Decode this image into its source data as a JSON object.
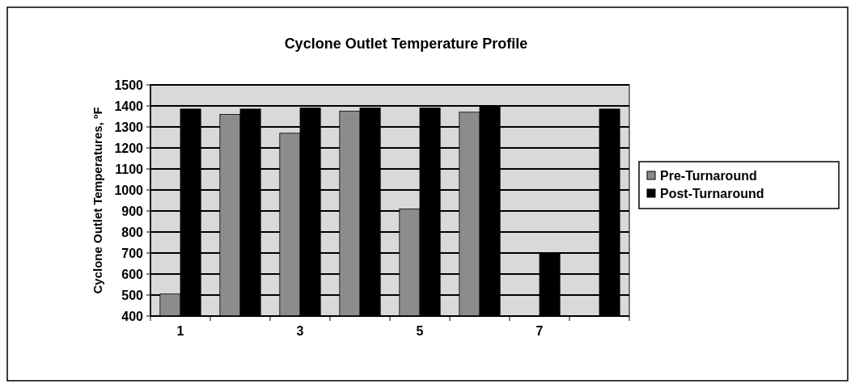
{
  "chart_data": {
    "type": "bar",
    "title": "Cyclone Outlet Temperature Profile",
    "ylabel": "Cyclone Outlet Temperatures, ºF",
    "categories": [
      "1",
      null,
      "3",
      null,
      "5",
      null,
      "7",
      null
    ],
    "series": [
      {
        "name": "Pre-Turnaround",
        "color": "#8c8c8c",
        "values": [
          505,
          1360,
          1270,
          1375,
          910,
          1370,
          null,
          null
        ]
      },
      {
        "name": "Post-Turnaround",
        "color": "#000000",
        "values": [
          1385,
          1385,
          1390,
          1390,
          1390,
          1400,
          700,
          1385
        ]
      }
    ],
    "ylim": [
      400,
      1500
    ],
    "yticks": [
      400,
      500,
      600,
      700,
      800,
      900,
      1000,
      1100,
      1200,
      1300,
      1400,
      1500
    ],
    "grid": "y",
    "legend": "right"
  }
}
